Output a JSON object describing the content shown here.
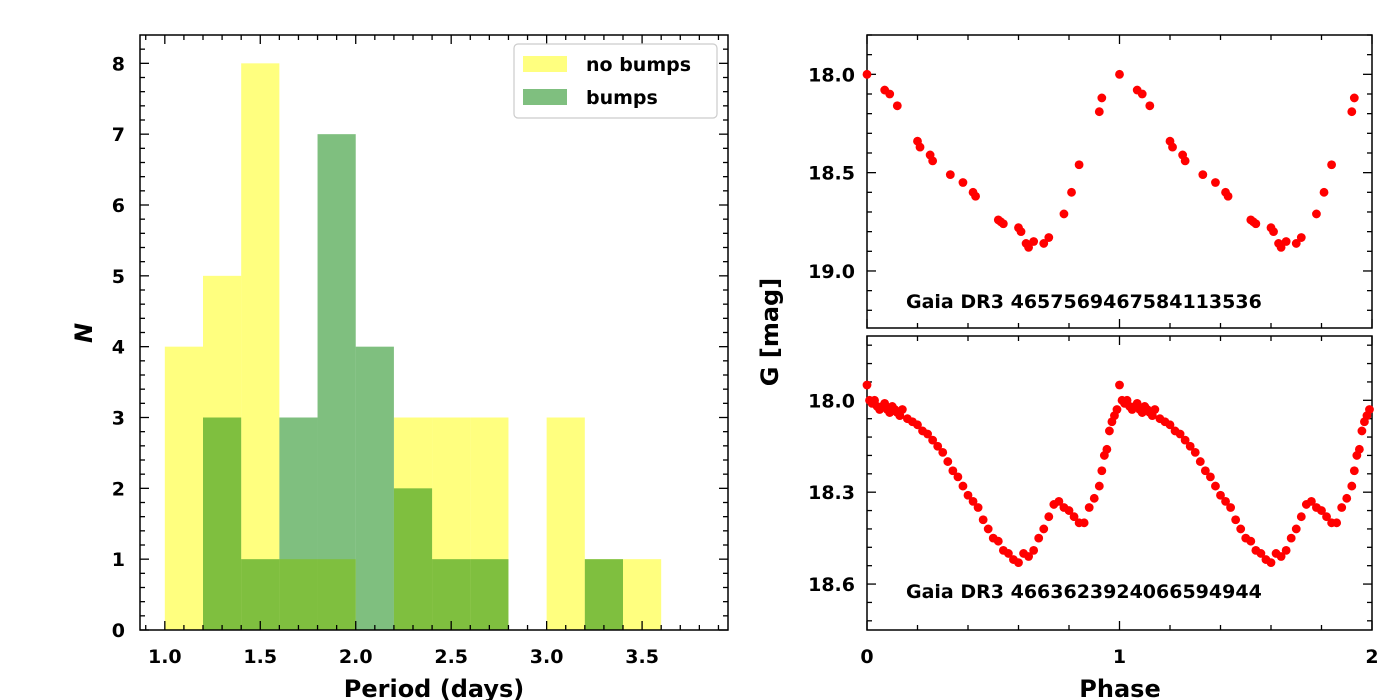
{
  "colors": {
    "no_bumps": "#ffff00",
    "bumps": "#008000",
    "points": "#ff0000"
  },
  "chart_data": [
    {
      "type": "bar",
      "subtype": "histogram",
      "xlabel": "Period (days)",
      "ylabel": "N",
      "xlim": [
        0.87,
        3.95
      ],
      "ylim": [
        0,
        8.4
      ],
      "xticks": [
        1.0,
        1.5,
        2.0,
        2.5,
        3.0,
        3.5
      ],
      "xtick_labels": [
        "1.0",
        "1.5",
        "2.0",
        "2.5",
        "3.0",
        "3.5"
      ],
      "yticks": [
        0,
        1,
        2,
        3,
        4,
        5,
        6,
        7,
        8
      ],
      "ytick_labels": [
        "0",
        "1",
        "2",
        "3",
        "4",
        "5",
        "6",
        "7",
        "8"
      ],
      "legend": "top-right",
      "series": [
        {
          "name": "no bumps",
          "color": "#ffff00",
          "bins": [
            [
              1.0,
              1.2,
              4
            ],
            [
              1.2,
              1.4,
              5
            ],
            [
              1.4,
              1.6,
              8
            ],
            [
              1.6,
              1.8,
              1
            ],
            [
              1.8,
              2.0,
              1
            ],
            [
              2.2,
              2.4,
              3
            ],
            [
              2.4,
              2.6,
              3
            ],
            [
              2.6,
              2.8,
              3
            ],
            [
              3.0,
              3.2,
              3
            ],
            [
              3.2,
              3.4,
              1
            ],
            [
              3.4,
              3.6,
              1
            ]
          ]
        },
        {
          "name": "bumps",
          "color": "#008000",
          "bins": [
            [
              1.2,
              1.4,
              3
            ],
            [
              1.4,
              1.6,
              1
            ],
            [
              1.6,
              1.8,
              3
            ],
            [
              1.8,
              2.0,
              7
            ],
            [
              2.0,
              2.2,
              4
            ],
            [
              2.2,
              2.4,
              2
            ],
            [
              2.4,
              2.6,
              1
            ],
            [
              2.6,
              2.8,
              1
            ],
            [
              3.2,
              3.4,
              1
            ]
          ]
        }
      ]
    },
    {
      "type": "scatter",
      "annotation": "Gaia DR3 4657569467584113536",
      "ylabel": "G [mag]",
      "ylim": [
        19.29,
        17.8
      ],
      "xlim": [
        0,
        2
      ],
      "yticks": [
        18.0,
        18.5,
        19.0
      ],
      "ytick_labels": [
        "18.0",
        "18.5",
        "19.0"
      ],
      "series": [
        {
          "name": "light curve",
          "x": [
            0.0,
            0.07,
            0.09,
            0.12,
            0.2,
            0.21,
            0.25,
            0.26,
            0.33,
            0.38,
            0.42,
            0.43,
            0.52,
            0.53,
            0.54,
            0.6,
            0.61,
            0.63,
            0.64,
            0.66,
            0.7,
            0.72,
            0.78,
            0.81,
            0.84,
            0.92,
            0.93
          ],
          "y": [
            18.0,
            18.08,
            18.1,
            18.16,
            18.34,
            18.37,
            18.41,
            18.44,
            18.51,
            18.55,
            18.6,
            18.62,
            18.74,
            18.75,
            18.76,
            18.78,
            18.8,
            18.86,
            18.88,
            18.85,
            18.86,
            18.83,
            18.71,
            18.6,
            18.46,
            18.19,
            18.12
          ],
          "period_repeat": 1
        }
      ]
    },
    {
      "type": "scatter",
      "annotation": "Gaia DR3 4663623924066594944",
      "xlabel": "Phase",
      "xlim": [
        0,
        2
      ],
      "ylim": [
        18.75,
        17.79
      ],
      "xticks": [
        0,
        1,
        2
      ],
      "xtick_labels": [
        "0",
        "1",
        "2"
      ],
      "yticks": [
        18.0,
        18.3,
        18.6
      ],
      "ytick_labels": [
        "18.0",
        "18.3",
        "18.6"
      ],
      "series": [
        {
          "name": "light curve",
          "x": [
            0.0,
            0.01,
            0.02,
            0.03,
            0.04,
            0.05,
            0.06,
            0.07,
            0.08,
            0.09,
            0.1,
            0.11,
            0.12,
            0.13,
            0.14,
            0.16,
            0.18,
            0.2,
            0.22,
            0.24,
            0.26,
            0.28,
            0.3,
            0.32,
            0.34,
            0.36,
            0.38,
            0.4,
            0.42,
            0.44,
            0.46,
            0.48,
            0.5,
            0.52,
            0.54,
            0.56,
            0.58,
            0.6,
            0.62,
            0.64,
            0.66,
            0.68,
            0.7,
            0.72,
            0.74,
            0.76,
            0.78,
            0.8,
            0.82,
            0.84,
            0.86,
            0.88,
            0.9,
            0.92,
            0.93,
            0.94,
            0.95,
            0.96,
            0.97,
            0.98,
            0.99
          ],
          "y": [
            17.95,
            18.0,
            18.01,
            18.0,
            18.02,
            18.03,
            18.02,
            18.01,
            18.03,
            18.04,
            18.02,
            18.03,
            18.04,
            18.05,
            18.03,
            18.06,
            18.07,
            18.08,
            18.1,
            18.11,
            18.13,
            18.15,
            18.17,
            18.2,
            18.23,
            18.25,
            18.28,
            18.31,
            18.33,
            18.35,
            18.39,
            18.42,
            18.45,
            18.46,
            18.49,
            18.5,
            18.52,
            18.53,
            18.5,
            18.51,
            18.49,
            18.45,
            18.42,
            18.38,
            18.34,
            18.33,
            18.35,
            18.36,
            18.38,
            18.4,
            18.4,
            18.35,
            18.32,
            18.28,
            18.23,
            18.18,
            18.16,
            18.1,
            18.07,
            18.05,
            18.03
          ],
          "period_repeat": 1
        }
      ]
    }
  ]
}
